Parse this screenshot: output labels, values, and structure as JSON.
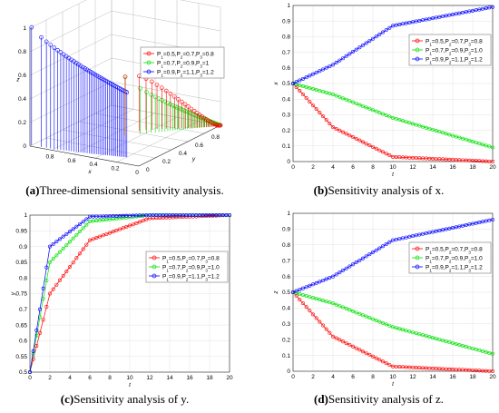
{
  "captions": {
    "a": {
      "letter": "(a)",
      "text": "Three-dimensional sensitivity analysis."
    },
    "b": {
      "letter": "(b)",
      "text": "Sensitivity analysis of x."
    },
    "c": {
      "letter": "(c)",
      "text": "Sensitivity analysis of y."
    },
    "d": {
      "letter": "(d)",
      "text": "Sensitivity analysis of z."
    }
  },
  "colors": {
    "red": "#ff0000",
    "green": "#00e000",
    "blue": "#0000ff"
  },
  "chart_data": [
    {
      "id": "a",
      "type": "scatter",
      "title": "",
      "plot_style": "3d-stem",
      "axes": {
        "x": "x",
        "y": "y",
        "z": "z"
      },
      "z_ticks": [
        "0",
        "0.2",
        "0.4",
        "0.6",
        "0.8",
        "1"
      ],
      "x_ticks": [
        "0.8",
        "0.6",
        "0.4",
        "0.2",
        "0"
      ],
      "y_ticks": [
        "0",
        "0.2",
        "0.4",
        "0.6",
        "0.8"
      ],
      "legend_placement": "top-right",
      "series": [
        {
          "name": "P1=0.5,P2=0.7,P3=0.8",
          "color": "red"
        },
        {
          "name": "P1=0.7,P2=0.9,P3=1",
          "color": "green"
        },
        {
          "name": "P1=0.9,P2=1.1,P3=1.2",
          "color": "blue"
        }
      ]
    },
    {
      "id": "b",
      "type": "line",
      "title": "",
      "xlabel": "t",
      "ylabel": "x",
      "xlim": [
        0,
        20
      ],
      "ylim": [
        0,
        1
      ],
      "x_ticks": [
        0,
        2,
        4,
        6,
        8,
        10,
        12,
        14,
        16,
        18,
        20
      ],
      "y_ticks": [
        0,
        0.1,
        0.2,
        0.3,
        0.4,
        0.5,
        0.6,
        0.7,
        0.8,
        0.9,
        1
      ],
      "grid": true,
      "legend_placement": "top-right",
      "series": [
        {
          "name": "P1=0.5,P2=0.7,P3=0.8",
          "color": "red",
          "t": [
            0,
            4,
            10,
            20
          ],
          "values": [
            0.5,
            0.22,
            0.03,
            0.0
          ]
        },
        {
          "name": "P1=0.7,P2=0.9,P3=1.0",
          "color": "green",
          "t": [
            0,
            4,
            10,
            20
          ],
          "values": [
            0.5,
            0.43,
            0.28,
            0.09
          ]
        },
        {
          "name": "P1=0.9,P2=1.1,P3=1.2",
          "color": "blue",
          "t": [
            0,
            4,
            10,
            20
          ],
          "values": [
            0.5,
            0.62,
            0.87,
            0.99
          ]
        }
      ]
    },
    {
      "id": "c",
      "type": "line",
      "title": "",
      "xlabel": "t",
      "ylabel": "y",
      "xlim": [
        0,
        20
      ],
      "ylim": [
        0.5,
        1
      ],
      "x_ticks": [
        0,
        2,
        4,
        6,
        8,
        10,
        12,
        14,
        16,
        18,
        20
      ],
      "y_ticks": [
        0.5,
        0.55,
        0.6,
        0.65,
        0.7,
        0.75,
        0.8,
        0.85,
        0.9,
        0.95,
        1
      ],
      "grid": true,
      "legend_placement": "right",
      "series": [
        {
          "name": "P1=0.5,P2=0.7,P3=0.8",
          "color": "red",
          "t": [
            0,
            2,
            6,
            12,
            20
          ],
          "values": [
            0.5,
            0.75,
            0.92,
            0.99,
            1.0
          ]
        },
        {
          "name": "P1=0.7,P2=0.9,P3=1.0",
          "color": "green",
          "t": [
            0,
            2,
            6,
            12,
            20
          ],
          "values": [
            0.5,
            0.85,
            0.98,
            1.0,
            1.0
          ]
        },
        {
          "name": "P1=0.9,P2=1.1,P3=1.2",
          "color": "blue",
          "t": [
            0,
            2,
            6,
            12,
            20
          ],
          "values": [
            0.5,
            0.9,
            0.995,
            1.0,
            1.0
          ]
        }
      ]
    },
    {
      "id": "d",
      "type": "line",
      "title": "",
      "xlabel": "t",
      "ylabel": "z",
      "xlim": [
        0,
        20
      ],
      "ylim": [
        0,
        1
      ],
      "x_ticks": [
        0,
        2,
        4,
        6,
        8,
        10,
        12,
        14,
        16,
        18,
        20
      ],
      "y_ticks": [
        0,
        0.1,
        0.2,
        0.3,
        0.4,
        0.5,
        0.6,
        0.7,
        0.8,
        0.9,
        1
      ],
      "grid": true,
      "legend_placement": "top-right",
      "series": [
        {
          "name": "P1=0.5,P2=0.7,P3=0.8",
          "color": "red",
          "t": [
            0,
            4,
            10,
            20
          ],
          "values": [
            0.5,
            0.22,
            0.03,
            0.0
          ]
        },
        {
          "name": "P1=0.7,P2=0.9,P3=1.0",
          "color": "green",
          "t": [
            0,
            4,
            10,
            20
          ],
          "values": [
            0.5,
            0.43,
            0.28,
            0.11
          ]
        },
        {
          "name": "P1=0.9,P2=1.1,P3=1.2",
          "color": "blue",
          "t": [
            0,
            4,
            10,
            20
          ],
          "values": [
            0.5,
            0.6,
            0.83,
            0.96
          ]
        }
      ]
    }
  ]
}
